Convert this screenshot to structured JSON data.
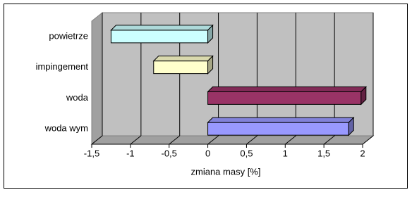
{
  "chart_data": {
    "type": "bar3d_horizontal",
    "categories": [
      "powietrze",
      "impingement",
      "woda",
      "woda wym"
    ],
    "values": [
      -1.25,
      -0.7,
      1.98,
      1.82
    ],
    "colors": [
      "#ccffff",
      "#ffffcc",
      "#993366",
      "#9999ff"
    ],
    "x_label": "zmiana masy [%]",
    "xlim": [
      -1.5,
      2
    ],
    "xticks": [
      {
        "value": -1.5,
        "label": "-1,5"
      },
      -1,
      {
        "value": -0.5,
        "label": "-0,5"
      },
      0,
      {
        "value": 0.5,
        "label": "0,5"
      },
      1,
      {
        "value": 1.5,
        "label": "1,5"
      },
      2
    ],
    "grid": true
  }
}
